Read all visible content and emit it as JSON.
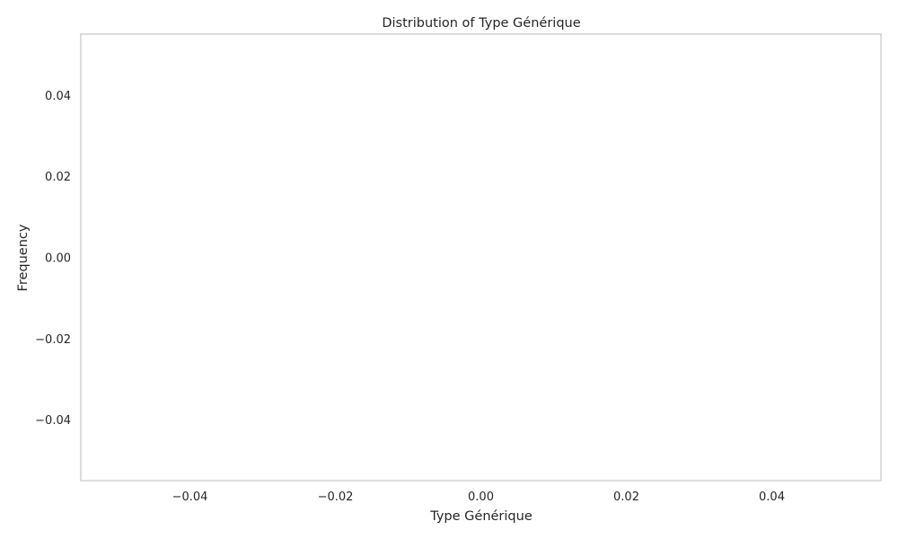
{
  "chart_data": {
    "type": "bar",
    "title": "Distribution of Type Générique",
    "xlabel": "Type Générique",
    "ylabel": "Frequency",
    "xlim": [
      -0.055,
      0.055
    ],
    "ylim": [
      -0.055,
      0.055
    ],
    "x_ticks": [
      -0.04,
      -0.02,
      0.0,
      0.02,
      0.04
    ],
    "x_tick_labels": [
      "−0.04",
      "−0.02",
      "0.00",
      "0.02",
      "0.04"
    ],
    "y_ticks": [
      0.04,
      0.02,
      0.0,
      -0.02,
      -0.04
    ],
    "y_tick_labels": [
      "0.04",
      "0.02",
      "0.00",
      "−0.02",
      "−0.04"
    ],
    "grid": true,
    "categories": [],
    "values": []
  }
}
